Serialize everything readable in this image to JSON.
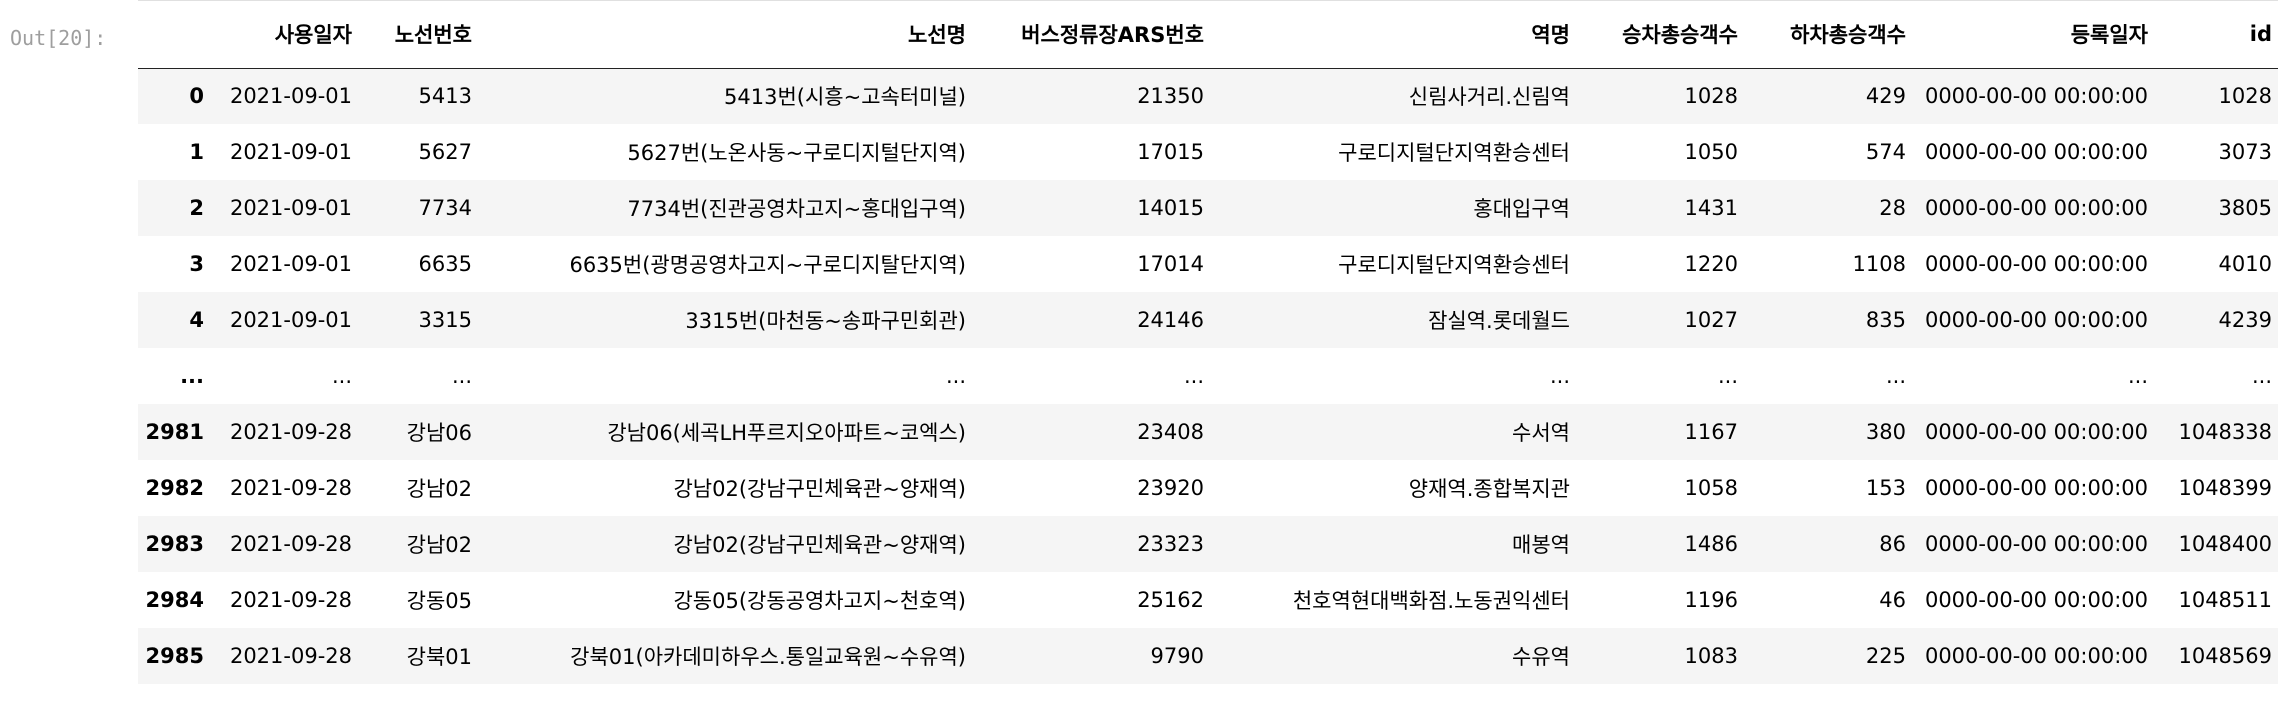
{
  "prompt": "Out[20]:",
  "columns": [
    "",
    "사용일자",
    "노선번호",
    "노선명",
    "버스정류장ARS번호",
    "역명",
    "승차총승객수",
    "하차총승객수",
    "등록일자",
    "id"
  ],
  "rows": [
    [
      "0",
      "2021-09-01",
      "5413",
      "5413번(시흥~고속터미널)",
      "21350",
      "신림사거리.신림역",
      "1028",
      "429",
      "0000-00-00 00:00:00",
      "1028"
    ],
    [
      "1",
      "2021-09-01",
      "5627",
      "5627번(노온사동~구로디지털단지역)",
      "17015",
      "구로디지털단지역환승센터",
      "1050",
      "574",
      "0000-00-00 00:00:00",
      "3073"
    ],
    [
      "2",
      "2021-09-01",
      "7734",
      "7734번(진관공영차고지~홍대입구역)",
      "14015",
      "홍대입구역",
      "1431",
      "28",
      "0000-00-00 00:00:00",
      "3805"
    ],
    [
      "3",
      "2021-09-01",
      "6635",
      "6635번(광명공영차고지~구로디지탈단지역)",
      "17014",
      "구로디지털단지역환승센터",
      "1220",
      "1108",
      "0000-00-00 00:00:00",
      "4010"
    ],
    [
      "4",
      "2021-09-01",
      "3315",
      "3315번(마천동~송파구민회관)",
      "24146",
      "잠실역.롯데월드",
      "1027",
      "835",
      "0000-00-00 00:00:00",
      "4239"
    ],
    [
      "...",
      "...",
      "...",
      "...",
      "...",
      "...",
      "...",
      "...",
      "...",
      "..."
    ],
    [
      "2981",
      "2021-09-28",
      "강남06",
      "강남06(세곡LH푸르지오아파트~코엑스)",
      "23408",
      "수서역",
      "1167",
      "380",
      "0000-00-00 00:00:00",
      "1048338"
    ],
    [
      "2982",
      "2021-09-28",
      "강남02",
      "강남02(강남구민체육관~양재역)",
      "23920",
      "양재역.종합복지관",
      "1058",
      "153",
      "0000-00-00 00:00:00",
      "1048399"
    ],
    [
      "2983",
      "2021-09-28",
      "강남02",
      "강남02(강남구민체육관~양재역)",
      "23323",
      "매봉역",
      "1486",
      "86",
      "0000-00-00 00:00:00",
      "1048400"
    ],
    [
      "2984",
      "2021-09-28",
      "강동05",
      "강동05(강동공영차고지~천호역)",
      "25162",
      "천호역현대백화점.노동권익센터",
      "1196",
      "46",
      "0000-00-00 00:00:00",
      "1048511"
    ],
    [
      "2985",
      "2021-09-28",
      "강북01",
      "강북01(아카데미하우스.통일교육원~수유역)",
      "9790",
      "수유역",
      "1083",
      "225",
      "0000-00-00 00:00:00",
      "1048569"
    ]
  ]
}
